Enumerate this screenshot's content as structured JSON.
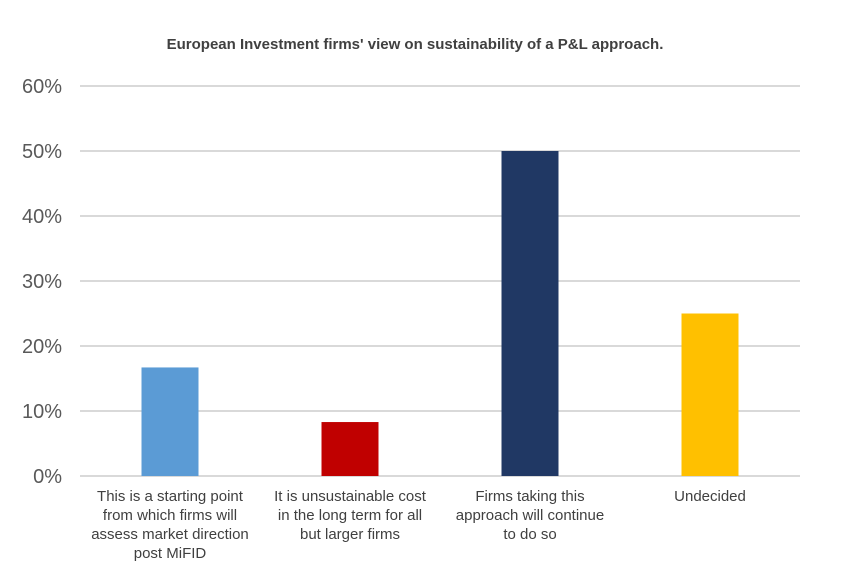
{
  "chart_data": {
    "type": "bar",
    "title": "European Investment firms' view on sustainability of a P&L approach.",
    "xlabel": "",
    "ylabel": "",
    "ylim": [
      0,
      0.6
    ],
    "yticks": [
      0,
      0.1,
      0.2,
      0.3,
      0.4,
      0.5,
      0.6
    ],
    "ytick_labels": [
      "0%",
      "10%",
      "20%",
      "30%",
      "40%",
      "50%",
      "60%"
    ],
    "grid": true,
    "legend": "none",
    "categories": [
      [
        "This is a starting point",
        "from which firms will",
        "assess market direction",
        "post MiFID"
      ],
      [
        "It is unsustainable cost",
        "in the long term for all",
        "but larger firms"
      ],
      [
        "Firms taking this",
        "approach will continue",
        "to do so"
      ],
      [
        "Undecided"
      ]
    ],
    "values": [
      0.167,
      0.083,
      0.5,
      0.25
    ],
    "colors": [
      "#5b9bd5",
      "#c00000",
      "#203864",
      "#ffc000"
    ]
  }
}
